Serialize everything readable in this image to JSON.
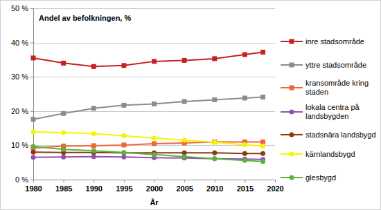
{
  "chart_data": {
    "type": "line",
    "title": "Andel av befolkningen, %",
    "x_label": "År",
    "x": [
      1980,
      1985,
      1990,
      1995,
      2000,
      2005,
      2010,
      2015,
      2018
    ],
    "xlim": [
      1980,
      2020
    ],
    "xticks": [
      1980,
      1985,
      1990,
      1995,
      2000,
      2005,
      2010,
      2015,
      2020
    ],
    "ylim": [
      0,
      50
    ],
    "yticks": [
      {
        "value": 0,
        "label": "0 %"
      },
      {
        "value": 10,
        "label": "10 %"
      },
      {
        "value": 20,
        "label": "20 %"
      },
      {
        "value": 30,
        "label": "30 %"
      },
      {
        "value": 40,
        "label": "40 %"
      },
      {
        "value": 50,
        "label": "50 %"
      }
    ],
    "grid": true,
    "legend": "right",
    "series": [
      {
        "name": "inre stadsområde",
        "color": "#c8201f",
        "marker": "square",
        "values": [
          35.5,
          34.0,
          33.0,
          33.3,
          34.5,
          34.8,
          35.3,
          36.5,
          37.2
        ]
      },
      {
        "name": "yttre stadsområde",
        "color": "#8c8c8c",
        "marker": "square",
        "values": [
          17.6,
          19.3,
          20.8,
          21.7,
          22.1,
          22.8,
          23.3,
          23.8,
          24.1
        ]
      },
      {
        "name": "kransområde kring staden",
        "color": "#f0643c",
        "marker": "square",
        "values": [
          9.2,
          9.8,
          9.9,
          10.1,
          10.5,
          10.7,
          11.0,
          11.0,
          11.0
        ]
      },
      {
        "name": "lokala centra på landsbygden",
        "color": "#9450b4",
        "marker": "circle",
        "values": [
          6.5,
          6.6,
          6.7,
          6.6,
          6.4,
          6.3,
          6.1,
          6.0,
          5.9
        ]
      },
      {
        "name": "stadsnära landsbygd",
        "color": "#8b3a14",
        "marker": "circle",
        "values": [
          8.0,
          7.9,
          7.9,
          7.8,
          7.8,
          7.8,
          7.8,
          7.6,
          7.6
        ]
      },
      {
        "name": "kärnlandsbygd",
        "color": "#f5f500",
        "marker": "circle",
        "values": [
          13.9,
          13.7,
          13.4,
          12.8,
          12.1,
          11.5,
          10.9,
          10.2,
          9.8
        ]
      },
      {
        "name": "glesbygd",
        "color": "#5bb33a",
        "marker": "circle",
        "values": [
          9.7,
          8.8,
          8.4,
          7.9,
          7.3,
          6.7,
          6.1,
          5.6,
          5.3
        ]
      }
    ]
  }
}
